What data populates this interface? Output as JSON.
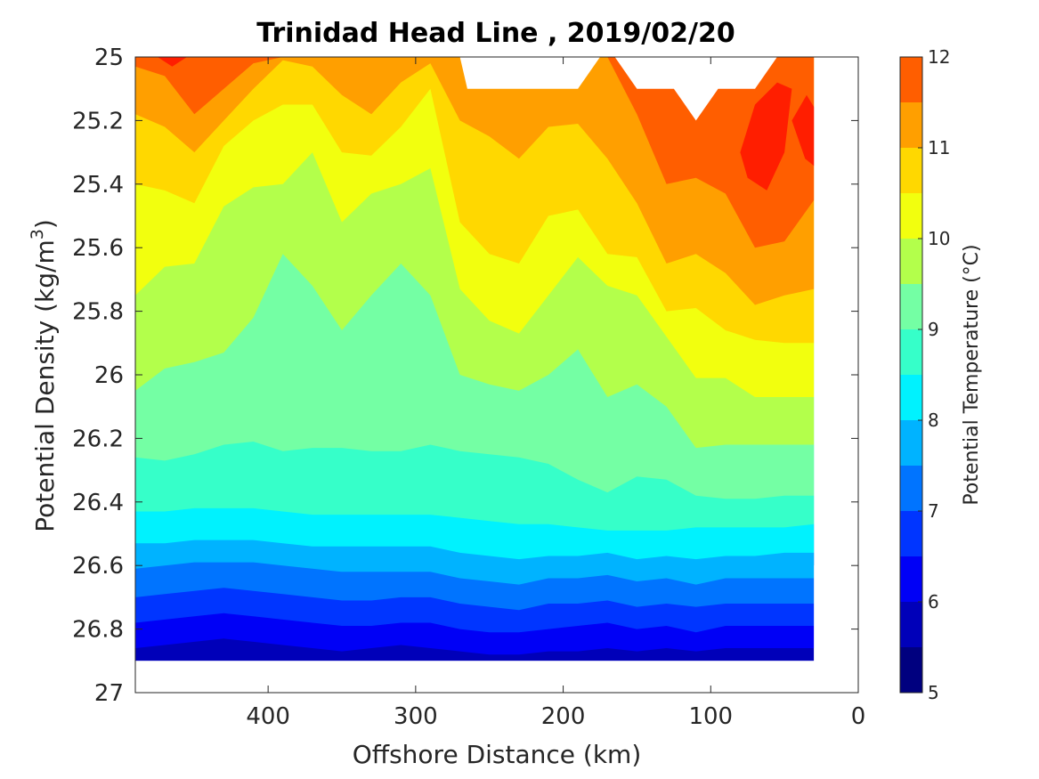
{
  "chart_data": {
    "type": "contour",
    "title": "Trinidad Head Line , 2019/02/20",
    "xlabel": "Offshore Distance (km)",
    "ylabel": "Potential Density (kg/m",
    "ylabel_sup": "3",
    "ylabel_end": ")",
    "colorbar_label": "Potential Temperature (°C)",
    "xlim": [
      490,
      0
    ],
    "x_reversed": true,
    "ylim": [
      25,
      27
    ],
    "y_reversed": true,
    "x_ticks": [
      {
        "value": 400,
        "label": "400"
      },
      {
        "value": 300,
        "label": "300"
      },
      {
        "value": 200,
        "label": "200"
      },
      {
        "value": 100,
        "label": "100"
      },
      {
        "value": 0,
        "label": "0"
      }
    ],
    "y_ticks": [
      {
        "value": 25,
        "label": "25"
      },
      {
        "value": 25.2,
        "label": "25.2"
      },
      {
        "value": 25.4,
        "label": "25.4"
      },
      {
        "value": 25.6,
        "label": "25.6"
      },
      {
        "value": 25.8,
        "label": "25.8"
      },
      {
        "value": 26,
        "label": "26"
      },
      {
        "value": 26.2,
        "label": "26.2"
      },
      {
        "value": 26.4,
        "label": "26.4"
      },
      {
        "value": 26.6,
        "label": "26.6"
      },
      {
        "value": 26.8,
        "label": "26.8"
      },
      {
        "value": 27,
        "label": "27"
      }
    ],
    "colorbar": {
      "range": [
        5,
        12
      ],
      "ticks": [
        {
          "value": 5,
          "label": "5"
        },
        {
          "value": 6,
          "label": "6"
        },
        {
          "value": 7,
          "label": "7"
        },
        {
          "value": 8,
          "label": "8"
        },
        {
          "value": 9,
          "label": "9"
        },
        {
          "value": 10,
          "label": "10"
        },
        {
          "value": 11,
          "label": "11"
        },
        {
          "value": 12,
          "label": "12"
        }
      ],
      "levels": [
        5,
        5.5,
        6,
        6.5,
        7,
        7.5,
        8,
        8.5,
        9,
        9.5,
        10,
        10.5,
        11,
        11.5,
        12
      ],
      "colors": [
        "#00007f",
        "#0000b9",
        "#0000f6",
        "#0035ff",
        "#0074ff",
        "#00b3ff",
        "#00f2fe",
        "#36ffc9",
        "#74ffa4",
        "#b3ff4b",
        "#f2ff0e",
        "#ffd800",
        "#ff9f00",
        "#ff5e00",
        "#ff1e00",
        "#c00000"
      ]
    },
    "x_samples": [
      490,
      470,
      450,
      430,
      410,
      390,
      370,
      350,
      330,
      310,
      290,
      270,
      250,
      230,
      210,
      190,
      170,
      150,
      130,
      110,
      90,
      70,
      50,
      30
    ],
    "data_bottom_density": 26.9,
    "isopycnal_depths": [
      {
        "temp": 5.5,
        "y": [
          26.86,
          26.85,
          26.84,
          26.83,
          26.84,
          26.85,
          26.86,
          26.87,
          26.86,
          26.85,
          26.86,
          26.87,
          26.88,
          26.88,
          26.87,
          26.87,
          26.86,
          26.87,
          26.86,
          26.87,
          26.86,
          26.86,
          26.86,
          26.86
        ]
      },
      {
        "temp": 6.0,
        "y": [
          26.78,
          26.77,
          26.76,
          26.75,
          26.76,
          26.77,
          26.78,
          26.79,
          26.79,
          26.78,
          26.78,
          26.8,
          26.81,
          26.81,
          26.8,
          26.79,
          26.78,
          26.8,
          26.79,
          26.81,
          26.79,
          26.79,
          26.79,
          26.79
        ]
      },
      {
        "temp": 6.5,
        "y": [
          26.7,
          26.69,
          26.68,
          26.67,
          26.68,
          26.69,
          26.7,
          26.71,
          26.71,
          26.7,
          26.7,
          26.72,
          26.73,
          26.74,
          26.72,
          26.72,
          26.71,
          26.73,
          26.72,
          26.73,
          26.72,
          26.72,
          26.72,
          26.72
        ]
      },
      {
        "temp": 7.0,
        "y": [
          26.61,
          26.6,
          26.59,
          26.59,
          26.59,
          26.6,
          26.61,
          26.62,
          26.62,
          26.62,
          26.62,
          26.64,
          26.65,
          26.66,
          26.64,
          26.64,
          26.63,
          26.65,
          26.64,
          26.66,
          26.64,
          26.64,
          26.64,
          26.64
        ]
      },
      {
        "temp": 7.5,
        "y": [
          26.53,
          26.53,
          26.52,
          26.52,
          26.52,
          26.53,
          26.54,
          26.54,
          26.54,
          26.54,
          26.54,
          26.56,
          26.57,
          26.58,
          26.57,
          26.57,
          26.56,
          26.58,
          26.57,
          26.58,
          26.57,
          26.57,
          26.56,
          26.56
        ]
      },
      {
        "temp": 8.0,
        "y": [
          26.43,
          26.43,
          26.42,
          26.42,
          26.42,
          26.43,
          26.44,
          26.44,
          26.44,
          26.44,
          26.44,
          26.45,
          26.46,
          26.47,
          26.47,
          26.48,
          26.49,
          26.49,
          26.49,
          26.48,
          26.48,
          26.48,
          26.48,
          26.47
        ]
      },
      {
        "temp": 8.5,
        "y": [
          26.26,
          26.27,
          26.25,
          26.22,
          26.21,
          26.24,
          26.23,
          26.23,
          26.24,
          26.24,
          26.22,
          26.24,
          26.25,
          26.26,
          26.28,
          26.33,
          26.37,
          26.32,
          26.33,
          26.38,
          26.39,
          26.39,
          26.38,
          26.38
        ]
      },
      {
        "temp": 9.0,
        "y": [
          26.05,
          25.98,
          25.96,
          25.93,
          25.82,
          25.62,
          25.72,
          25.86,
          25.75,
          25.65,
          25.75,
          26.0,
          26.03,
          26.05,
          26.0,
          25.92,
          26.07,
          26.03,
          26.1,
          26.23,
          26.22,
          26.22,
          26.22,
          26.22
        ]
      },
      {
        "temp": 9.5,
        "y": [
          25.75,
          25.66,
          25.65,
          25.47,
          25.41,
          25.4,
          25.3,
          25.52,
          25.43,
          25.4,
          25.35,
          25.73,
          25.83,
          25.87,
          25.75,
          25.63,
          25.72,
          25.75,
          25.88,
          26.01,
          26.01,
          26.07,
          26.07,
          26.07
        ]
      },
      {
        "temp": 10.0,
        "y": [
          25.4,
          25.42,
          25.46,
          25.28,
          25.2,
          25.15,
          25.15,
          25.3,
          25.31,
          25.22,
          25.1,
          25.52,
          25.62,
          25.65,
          25.5,
          25.48,
          25.62,
          25.63,
          25.8,
          25.79,
          25.86,
          25.89,
          25.9,
          25.9
        ]
      },
      {
        "temp": 10.5,
        "y": [
          25.18,
          25.22,
          25.3,
          25.2,
          25.1,
          25.01,
          25.03,
          25.12,
          25.18,
          25.08,
          25.02,
          25.2,
          25.25,
          25.32,
          25.22,
          25.21,
          25.32,
          25.46,
          25.65,
          25.62,
          25.68,
          25.78,
          25.75,
          25.73
        ]
      },
      {
        "temp": 11.0,
        "y": [
          25.03,
          25.06,
          25.18,
          25.1,
          25.02,
          25.0,
          25.0,
          25.0,
          25.0,
          25.0,
          25.0,
          25.0,
          25.0,
          25.05,
          25.02,
          25.0,
          25.0,
          25.18,
          25.4,
          25.38,
          25.43,
          25.6,
          25.58,
          25.45
        ]
      }
    ],
    "no_data_regions": [
      {
        "label": "",
        "points": [
          [
            270,
            25.0
          ],
          [
            265,
            25.1
          ],
          [
            190,
            25.1
          ],
          [
            175,
            25.0
          ]
        ]
      },
      {
        "label": "",
        "points": [
          [
            165,
            25.0
          ],
          [
            150,
            25.1
          ],
          [
            125,
            25.1
          ],
          [
            110,
            25.2
          ],
          [
            95,
            25.1
          ],
          [
            70,
            25.1
          ],
          [
            55,
            25.0
          ]
        ]
      },
      {
        "label": "",
        "points": [
          [
            20,
            25.65
          ],
          [
            10,
            25.5
          ],
          [
            10,
            27.0
          ],
          [
            20,
            27.0
          ]
        ]
      },
      {
        "label": "",
        "points": [
          [
            30,
            26.6
          ],
          [
            20,
            26.5
          ],
          [
            20,
            27.0
          ],
          [
            30,
            27.0
          ]
        ]
      }
    ],
    "warm_cores": [
      {
        "temp": 11.5,
        "points": [
          [
            80,
            25.3
          ],
          [
            70,
            25.15
          ],
          [
            55,
            25.08
          ],
          [
            45,
            25.1
          ],
          [
            50,
            25.3
          ],
          [
            62,
            25.42
          ],
          [
            75,
            25.38
          ]
        ]
      },
      {
        "temp": 11.5,
        "points": [
          [
            45,
            25.2
          ],
          [
            35,
            25.12
          ],
          [
            27,
            25.18
          ],
          [
            28,
            25.35
          ],
          [
            36,
            25.32
          ]
        ]
      },
      {
        "temp": 11.5,
        "points": [
          [
            475,
            25.0
          ],
          [
            465,
            25.03
          ],
          [
            455,
            25.0
          ]
        ]
      }
    ]
  }
}
